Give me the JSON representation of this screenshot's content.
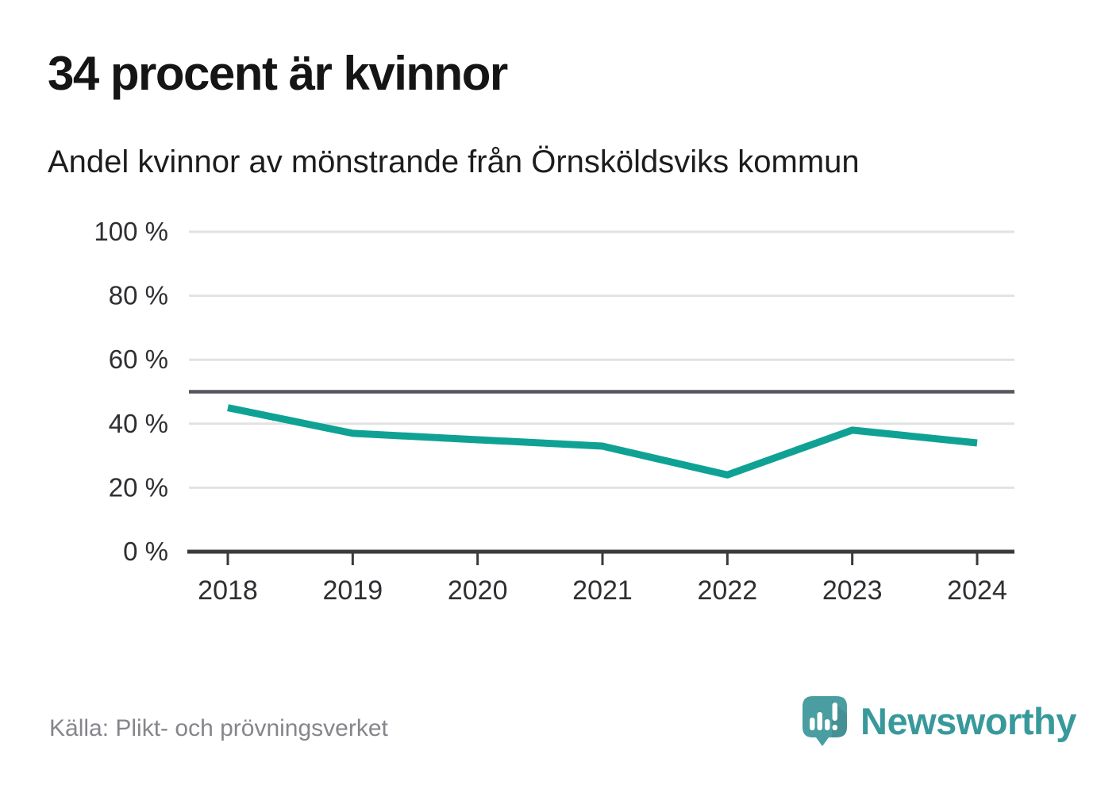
{
  "title": "34 procent är kvinnor",
  "subtitle": "Andel kvinnor av mönstrande från Örnsköldsviks kommun",
  "source": "Källa: Plikt- och prövningsverket",
  "brand": {
    "name": "Newsworthy",
    "logo_icon": "newsworthy-speech-bubble-bar-chart-icon",
    "logo_color": "#4a9da0",
    "word_color": "#38999b"
  },
  "colors": {
    "line": "#0fa294",
    "grid": "#e2e2e2",
    "axis": "#3a3a3a",
    "reference": "#55555e",
    "tick_label": "#2f2f33"
  },
  "chart_data": {
    "type": "line",
    "title": "34 procent är kvinnor",
    "subtitle": "Andel kvinnor av mönstrande från Örnsköldsviks kommun",
    "x": [
      2018,
      2019,
      2020,
      2021,
      2022,
      2023,
      2024
    ],
    "series": [
      {
        "name": "Andel kvinnor av mönstrande",
        "values": [
          45,
          37,
          35,
          33,
          24,
          38,
          34
        ],
        "color": "#0fa294"
      }
    ],
    "ylim": [
      0,
      100
    ],
    "yticks": [
      0,
      20,
      40,
      60,
      80,
      100
    ],
    "ytick_suffix": " %",
    "reference_line": 50,
    "grid": "horizontal",
    "legend": "none"
  }
}
